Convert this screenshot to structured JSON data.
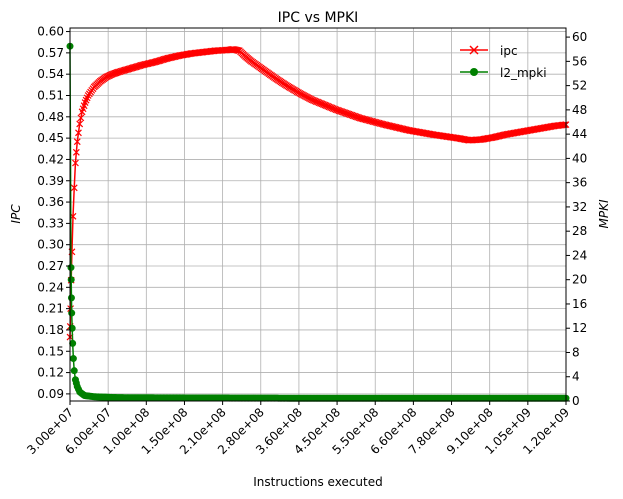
{
  "chart_data": {
    "type": "line",
    "title": "IPC vs MPKI",
    "xlabel": "Instructions executed",
    "ylabel_left": "IPC",
    "ylabel_right": "MPKI",
    "x_tick_labels": [
      "3.00e+07",
      "6.00e+07",
      "1.00e+08",
      "1.50e+08",
      "2.10e+08",
      "2.80e+08",
      "3.60e+08",
      "4.50e+08",
      "5.50e+08",
      "6.60e+08",
      "7.80e+08",
      "9.10e+08",
      "1.05e+09",
      "1.20e+09"
    ],
    "y_left_ticks": [
      "0.09",
      "0.12",
      "0.15",
      "0.18",
      "0.21",
      "0.24",
      "0.27",
      "0.30",
      "0.33",
      "0.36",
      "0.39",
      "0.42",
      "0.45",
      "0.48",
      "0.51",
      "0.54",
      "0.57",
      "0.60"
    ],
    "y_right_ticks": [
      "0",
      "4",
      "8",
      "12",
      "16",
      "20",
      "24",
      "28",
      "32",
      "36",
      "40",
      "44",
      "48",
      "52",
      "56",
      "60"
    ],
    "y_left_range": [
      0.08,
      0.605
    ],
    "y_right_range": [
      0,
      61.5
    ],
    "grid": true,
    "legend_position": "top-right",
    "series": [
      {
        "name": "ipc",
        "axis": "left",
        "color": "#ff0000",
        "marker": "x",
        "points": [
          [
            0.0,
            0.17
          ],
          [
            0.02,
            0.185
          ],
          [
            0.05,
            0.21
          ],
          [
            0.1,
            0.25
          ],
          [
            0.16,
            0.29
          ],
          [
            0.25,
            0.34
          ],
          [
            0.35,
            0.38
          ],
          [
            0.45,
            0.415
          ],
          [
            0.6,
            0.445
          ],
          [
            0.8,
            0.47
          ],
          [
            1.0,
            0.487
          ],
          [
            1.25,
            0.5
          ],
          [
            1.5,
            0.51
          ],
          [
            2.0,
            0.522
          ],
          [
            2.5,
            0.53
          ],
          [
            3.0,
            0.536
          ],
          [
            3.5,
            0.54
          ],
          [
            4.0,
            0.543
          ],
          [
            5.0,
            0.548
          ],
          [
            6.0,
            0.553
          ],
          [
            7.0,
            0.557
          ],
          [
            8.0,
            0.562
          ],
          [
            9.0,
            0.566
          ],
          [
            10.0,
            0.569
          ],
          [
            11.0,
            0.571
          ],
          [
            12.0,
            0.573
          ],
          [
            13.0,
            0.574
          ],
          [
            13.5,
            0.575
          ],
          [
            14.0,
            0.573
          ],
          [
            14.5,
            0.565
          ],
          [
            15.0,
            0.558
          ],
          [
            16.0,
            0.546
          ],
          [
            17.0,
            0.534
          ],
          [
            18.0,
            0.523
          ],
          [
            19.0,
            0.513
          ],
          [
            20.0,
            0.504
          ],
          [
            22.0,
            0.49
          ],
          [
            24.0,
            0.478
          ],
          [
            26.0,
            0.469
          ],
          [
            28.0,
            0.461
          ],
          [
            30.0,
            0.455
          ],
          [
            32.0,
            0.45
          ],
          [
            33.0,
            0.447
          ],
          [
            34.0,
            0.448
          ],
          [
            35.0,
            0.451
          ],
          [
            36.0,
            0.455
          ],
          [
            38.0,
            0.461
          ],
          [
            40.0,
            0.467
          ],
          [
            41.0,
            0.469
          ]
        ]
      },
      {
        "name": "l2_mpki",
        "axis": "right",
        "color": "#008000",
        "marker": "o",
        "points": [
          [
            0.0,
            58.5
          ],
          [
            0.08,
            22.0
          ],
          [
            0.1,
            20.0
          ],
          [
            0.12,
            17.0
          ],
          [
            0.14,
            14.5
          ],
          [
            0.18,
            12.0
          ],
          [
            0.22,
            9.5
          ],
          [
            0.28,
            7.0
          ],
          [
            0.35,
            5.0
          ],
          [
            0.45,
            3.5
          ],
          [
            0.6,
            2.4
          ],
          [
            0.8,
            1.5
          ],
          [
            1.2,
            0.9
          ],
          [
            2.0,
            0.7
          ],
          [
            4.0,
            0.55
          ],
          [
            10.0,
            0.5
          ],
          [
            20.0,
            0.45
          ],
          [
            30.0,
            0.45
          ],
          [
            41.0,
            0.45
          ]
        ]
      }
    ]
  }
}
